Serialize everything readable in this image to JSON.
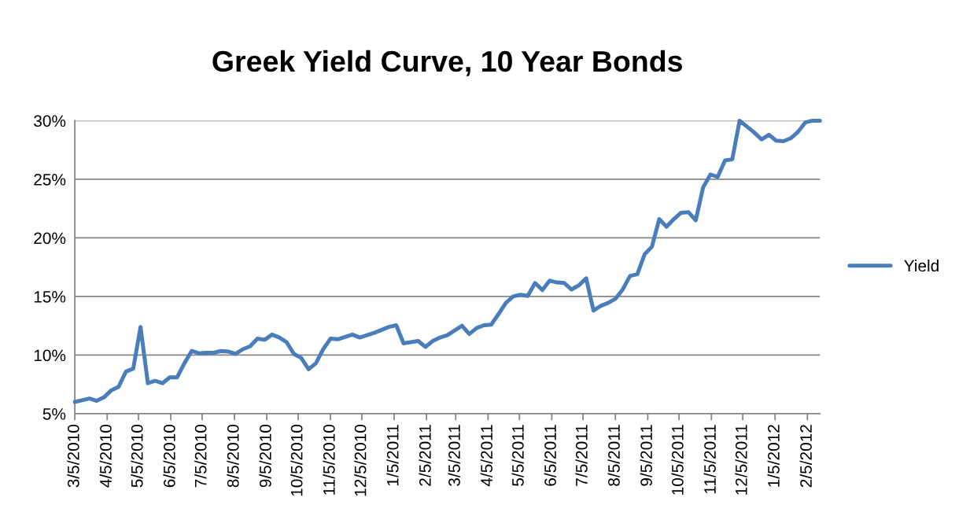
{
  "chart_data": {
    "type": "line",
    "title": "Greek Yield Curve, 10 Year Bonds",
    "x": [
      "2010-03-05",
      "2010-03-12",
      "2010-03-19",
      "2010-03-26",
      "2010-04-02",
      "2010-04-09",
      "2010-04-16",
      "2010-04-23",
      "2010-04-30",
      "2010-05-07",
      "2010-05-14",
      "2010-05-21",
      "2010-05-28",
      "2010-06-04",
      "2010-06-11",
      "2010-06-18",
      "2010-06-25",
      "2010-07-02",
      "2010-07-09",
      "2010-07-16",
      "2010-07-23",
      "2010-07-30",
      "2010-08-06",
      "2010-08-13",
      "2010-08-20",
      "2010-08-27",
      "2010-09-03",
      "2010-09-10",
      "2010-09-17",
      "2010-09-24",
      "2010-10-01",
      "2010-10-08",
      "2010-10-15",
      "2010-10-22",
      "2010-10-29",
      "2010-11-05",
      "2010-11-12",
      "2010-11-19",
      "2010-11-26",
      "2010-12-03",
      "2010-12-10",
      "2010-12-17",
      "2010-12-24",
      "2010-12-31",
      "2011-01-07",
      "2011-01-14",
      "2011-01-21",
      "2011-01-28",
      "2011-02-04",
      "2011-02-11",
      "2011-02-18",
      "2011-02-25",
      "2011-03-04",
      "2011-03-11",
      "2011-03-18",
      "2011-03-25",
      "2011-04-01",
      "2011-04-08",
      "2011-04-15",
      "2011-04-22",
      "2011-04-29",
      "2011-05-06",
      "2011-05-13",
      "2011-05-20",
      "2011-05-27",
      "2011-06-03",
      "2011-06-10",
      "2011-06-17",
      "2011-06-24",
      "2011-07-01",
      "2011-07-08",
      "2011-07-15",
      "2011-07-22",
      "2011-07-29",
      "2011-08-05",
      "2011-08-12",
      "2011-08-19",
      "2011-08-26",
      "2011-09-02",
      "2011-09-09",
      "2011-09-16",
      "2011-09-23",
      "2011-09-30",
      "2011-10-07",
      "2011-10-14",
      "2011-10-21",
      "2011-10-28",
      "2011-11-04",
      "2011-11-11",
      "2011-11-18",
      "2011-11-25",
      "2011-12-02",
      "2011-12-09",
      "2011-12-16",
      "2011-12-23",
      "2011-12-30",
      "2012-01-06",
      "2012-01-13",
      "2012-01-20",
      "2012-01-27",
      "2012-02-03",
      "2012-02-10",
      "2012-02-17"
    ],
    "series": [
      {
        "name": "Yield",
        "color": "#4a7ebb",
        "values": [
          6.0,
          6.15,
          6.3,
          6.1,
          6.4,
          7.0,
          7.3,
          8.6,
          8.85,
          12.4,
          7.6,
          7.8,
          7.6,
          8.1,
          8.1,
          9.3,
          10.35,
          10.15,
          10.2,
          10.2,
          10.35,
          10.3,
          10.1,
          10.5,
          10.75,
          11.4,
          11.3,
          11.75,
          11.5,
          11.1,
          10.1,
          9.75,
          8.8,
          9.3,
          10.5,
          11.4,
          11.35,
          11.55,
          11.75,
          11.5,
          11.7,
          11.9,
          12.15,
          12.4,
          12.55,
          11.0,
          11.1,
          11.2,
          10.7,
          11.2,
          11.5,
          11.7,
          12.1,
          12.5,
          11.8,
          12.3,
          12.55,
          12.6,
          13.5,
          14.45,
          15.0,
          15.15,
          15.05,
          16.15,
          15.55,
          16.35,
          16.2,
          16.15,
          15.6,
          15.95,
          16.55,
          13.8,
          14.2,
          14.45,
          14.8,
          15.6,
          16.75,
          16.9,
          18.6,
          19.25,
          21.6,
          20.95,
          21.6,
          22.15,
          22.2,
          21.5,
          24.3,
          25.4,
          25.2,
          26.6,
          26.7,
          30.0,
          29.5,
          29.0,
          28.4,
          28.8,
          28.3,
          28.25,
          28.5,
          29.05,
          29.85,
          30.0,
          30.0
        ]
      }
    ],
    "xlim": [
      "2010-03-05",
      "2012-02-17"
    ],
    "xticks": [
      {
        "value": "2010-03-05",
        "label": "3/5/2010"
      },
      {
        "value": "2010-04-05",
        "label": "4/5/2010"
      },
      {
        "value": "2010-05-05",
        "label": "5/5/2010"
      },
      {
        "value": "2010-06-05",
        "label": "6/5/2010"
      },
      {
        "value": "2010-07-05",
        "label": "7/5/2010"
      },
      {
        "value": "2010-08-05",
        "label": "8/5/2010"
      },
      {
        "value": "2010-09-05",
        "label": "9/5/2010"
      },
      {
        "value": "2010-10-05",
        "label": "10/5/2010"
      },
      {
        "value": "2010-11-05",
        "label": "11/5/2010"
      },
      {
        "value": "2010-12-05",
        "label": "12/5/2010"
      },
      {
        "value": "2011-01-05",
        "label": "1/5/2011"
      },
      {
        "value": "2011-02-05",
        "label": "2/5/2011"
      },
      {
        "value": "2011-03-05",
        "label": "3/5/2011"
      },
      {
        "value": "2011-04-05",
        "label": "4/5/2011"
      },
      {
        "value": "2011-05-05",
        "label": "5/5/2011"
      },
      {
        "value": "2011-06-05",
        "label": "6/5/2011"
      },
      {
        "value": "2011-07-05",
        "label": "7/5/2011"
      },
      {
        "value": "2011-08-05",
        "label": "8/5/2011"
      },
      {
        "value": "2011-09-05",
        "label": "9/5/2011"
      },
      {
        "value": "2011-10-05",
        "label": "10/5/2011"
      },
      {
        "value": "2011-11-05",
        "label": "11/5/2011"
      },
      {
        "value": "2011-12-05",
        "label": "12/5/2011"
      },
      {
        "value": "2012-01-05",
        "label": "1/5/2012"
      },
      {
        "value": "2012-02-05",
        "label": "2/5/2012"
      }
    ],
    "ylim": [
      5,
      30
    ],
    "yticks": [
      {
        "value": 5,
        "label": "5%"
      },
      {
        "value": 10,
        "label": "10%"
      },
      {
        "value": 15,
        "label": "15%"
      },
      {
        "value": 20,
        "label": "20%"
      },
      {
        "value": 25,
        "label": "25%"
      },
      {
        "value": 30,
        "label": "30%"
      }
    ],
    "grid": "y",
    "legend": "right",
    "marker": "none",
    "line_style": "solid"
  }
}
